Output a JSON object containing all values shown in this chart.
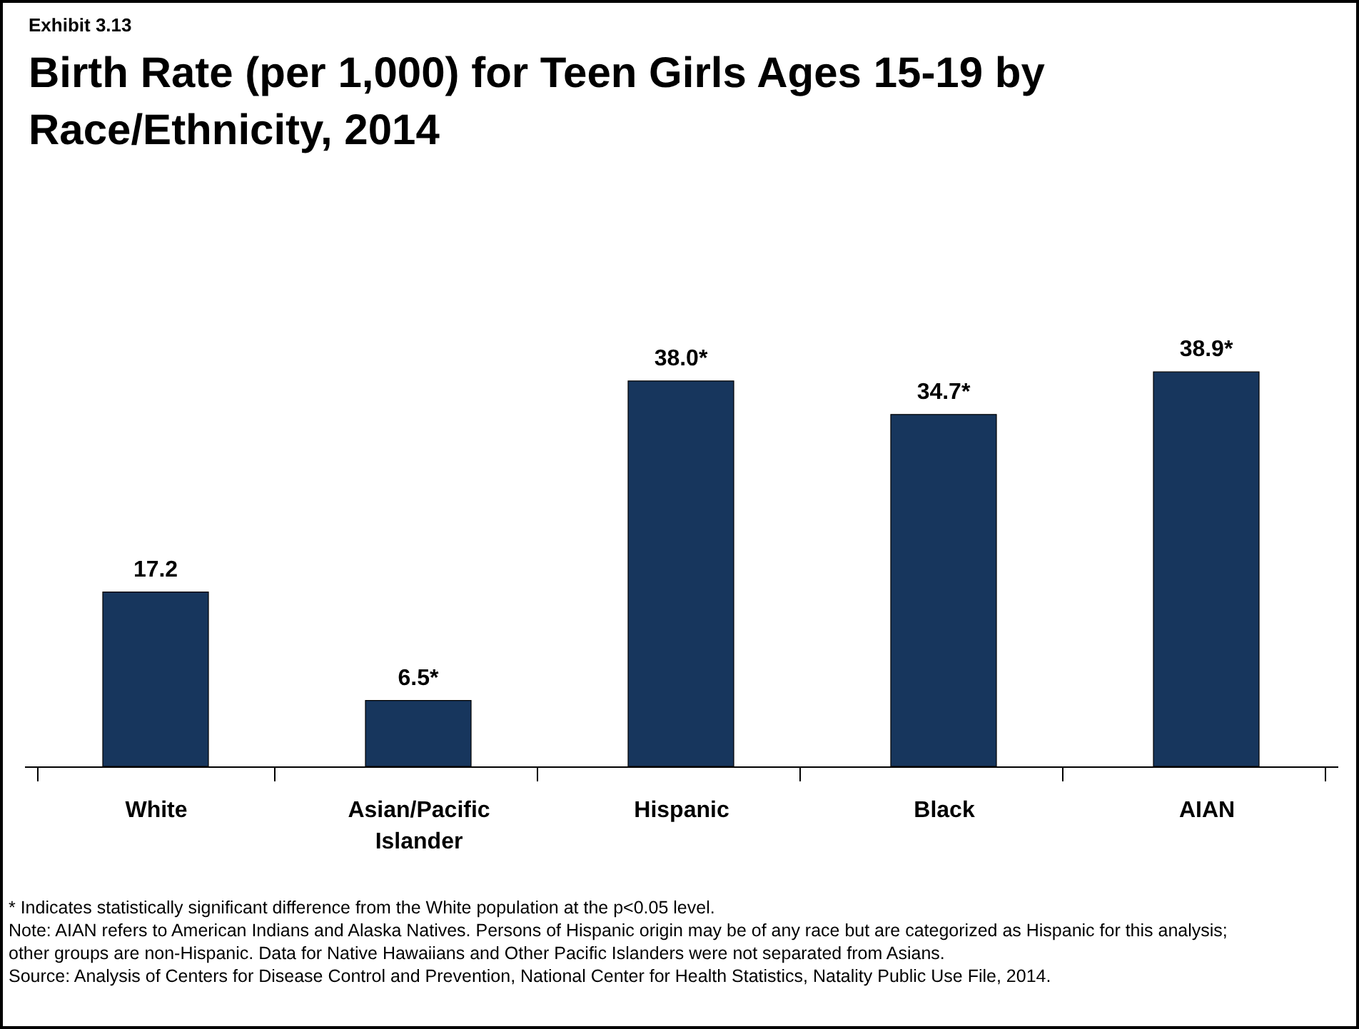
{
  "chart_data": {
    "type": "bar",
    "subtitle": "Exhibit 3.13",
    "title": "Birth Rate (per 1,000) for Teen Girls Ages 15-19 by Race/Ethnicity, 2014",
    "categories": [
      "White",
      "Asian/Pacific Islander",
      "Hispanic",
      "Black",
      "AIAN"
    ],
    "values": [
      17.2,
      6.5,
      38.0,
      34.7,
      38.9
    ],
    "value_labels": [
      "17.2",
      "6.5*",
      "38.0*",
      "34.7*",
      "38.9*"
    ],
    "color": "#17365d",
    "annotations": [
      "* Indicates statistically significant difference from the White population at the p<0.05 level.",
      "Note: AIAN refers to American Indians and Alaska Natives. Persons of Hispanic origin may be of any race but are categorized as Hispanic for this analysis; other groups are non-Hispanic. Data for Native Hawaiians and Other Pacific Islanders were not separated from Asians.",
      "Source: Analysis of Centers for Disease Control and Prevention, National Center for Health Statistics, Natality Public Use File, 2014."
    ]
  }
}
